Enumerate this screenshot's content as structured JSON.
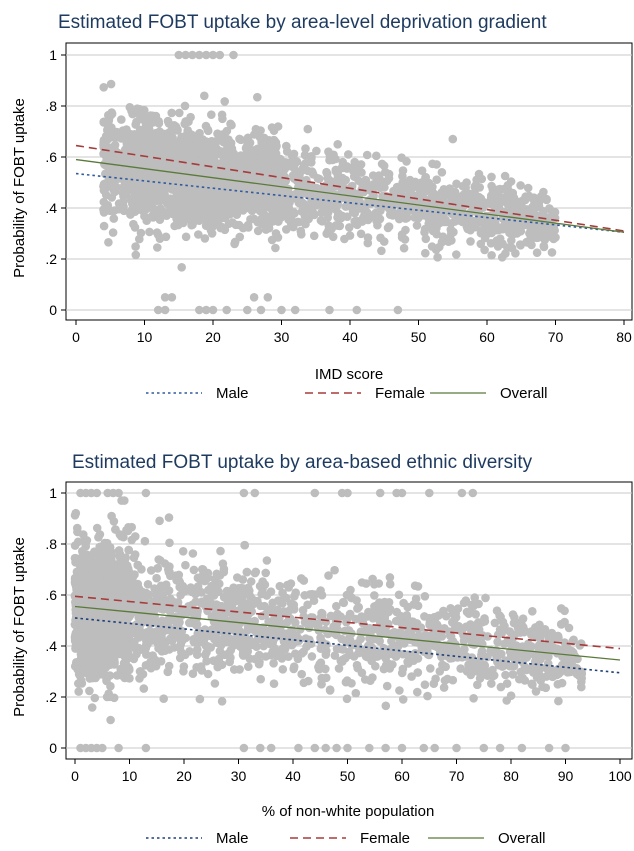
{
  "chart_data": [
    {
      "type": "scatter",
      "title": "Estimated FOBT uptake by area-level deprivation gradient",
      "xlabel": "IMD score",
      "ylabel": "Probability of FOBT uptake",
      "xlim": [
        0,
        80
      ],
      "ylim": [
        0,
        1
      ],
      "xticks": [
        "0",
        "10",
        "20",
        "30",
        "40",
        "50",
        "60",
        "70",
        "80"
      ],
      "yticks": [
        "0",
        ".2",
        ".4",
        ".6",
        ".8",
        "1"
      ],
      "grid": true,
      "legend_position": "bottom",
      "scatter_color": "#bdbdbd",
      "scatter_description": "dense cloud of grey points; bulk between x=4 and x=70, peaking around x=10-25 with values 0.2-0.8, narrowing toward x=70 at 0.25-0.45; outliers at 0 and 1",
      "series": [
        {
          "name": "Male",
          "style": "dotted",
          "color": "#2f5aa0",
          "x": [
            0,
            80
          ],
          "y": [
            0.535,
            0.305
          ]
        },
        {
          "name": "Female",
          "style": "dashed",
          "color": "#a83a3a",
          "x": [
            0,
            80
          ],
          "y": [
            0.645,
            0.31
          ]
        },
        {
          "name": "Overall",
          "style": "solid",
          "color": "#5a7a3a",
          "x": [
            0,
            80
          ],
          "y": [
            0.59,
            0.305
          ]
        }
      ]
    },
    {
      "type": "scatter",
      "title": "Estimated FOBT uptake by area-based ethnic diversity",
      "xlabel": "% of non-white population",
      "ylabel": "Probability of FOBT uptake",
      "xlim": [
        0,
        100
      ],
      "ylim": [
        0,
        1
      ],
      "xticks": [
        "0",
        "10",
        "20",
        "30",
        "40",
        "50",
        "60",
        "70",
        "80",
        "90",
        "100"
      ],
      "yticks": [
        "0",
        ".2",
        ".4",
        ".6",
        ".8",
        "1"
      ],
      "grid": true,
      "legend_position": "bottom",
      "scatter_color": "#bdbdbd",
      "scatter_description": "dense cloud of grey points; heaviest at x=1-10 spanning 0.15-0.9, thinning to the right to x=93 at 0.2-0.45; outliers at 0 and 1",
      "series": [
        {
          "name": "Male",
          "style": "dotted",
          "color": "#1f3f7a",
          "x": [
            0,
            100
          ],
          "y": [
            0.51,
            0.295
          ]
        },
        {
          "name": "Female",
          "style": "dashed",
          "color": "#a83a3a",
          "x": [
            0,
            100
          ],
          "y": [
            0.595,
            0.39
          ]
        },
        {
          "name": "Overall",
          "style": "solid",
          "color": "#5a7a3a",
          "x": [
            0,
            100
          ],
          "y": [
            0.555,
            0.345
          ]
        }
      ]
    }
  ]
}
